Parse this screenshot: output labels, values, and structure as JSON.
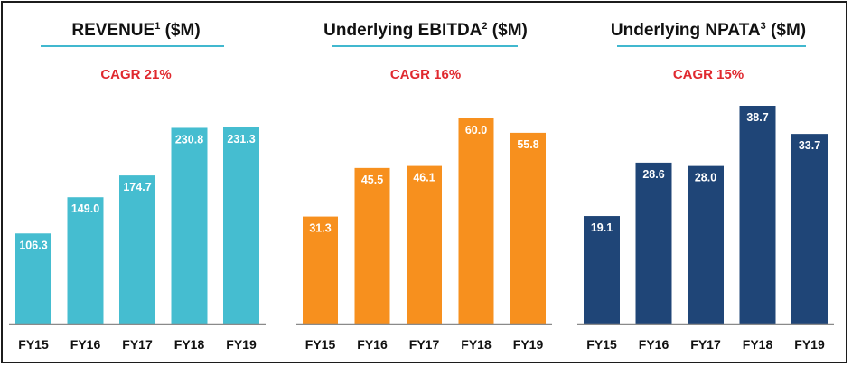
{
  "colors": {
    "revenue": "#45bdd0",
    "ebitda": "#f7901e",
    "npata": "#1f4577",
    "cagr_text": "#e0282e",
    "title_underline": "#41b8cf",
    "baseline": "#8a8a8a"
  },
  "chart_data": [
    {
      "type": "bar",
      "title": "REVENUE",
      "title_sup": "1",
      "title_unit": " ($M)",
      "subtitle": "CAGR 21%",
      "categories": [
        "FY15",
        "FY16",
        "FY17",
        "FY18",
        "FY19"
      ],
      "values": [
        106.3,
        149.0,
        174.7,
        230.8,
        231.3
      ],
      "value_labels": [
        "106.3",
        "149.0",
        "174.7",
        "230.8",
        "231.3"
      ],
      "ylim": [
        0,
        231.3
      ],
      "grid": false,
      "legend": "none"
    },
    {
      "type": "bar",
      "title": "Underlying EBITDA",
      "title_sup": "2",
      "title_unit": " ($M)",
      "subtitle": "CAGR 16%",
      "categories": [
        "FY15",
        "FY16",
        "FY17",
        "FY18",
        "FY19"
      ],
      "values": [
        31.3,
        45.5,
        46.1,
        60.0,
        55.8
      ],
      "value_labels": [
        "31.3",
        "45.5",
        "46.1",
        "60.0",
        "55.8"
      ],
      "ylim": [
        0,
        60.0
      ],
      "grid": false,
      "legend": "none"
    },
    {
      "type": "bar",
      "title": "Underlying NPATA",
      "title_sup": "3",
      "title_unit": " ($M)",
      "subtitle": "CAGR 15%",
      "categories": [
        "FY15",
        "FY16",
        "FY17",
        "FY18",
        "FY19"
      ],
      "values": [
        19.1,
        28.6,
        28.0,
        38.7,
        33.7
      ],
      "value_labels": [
        "19.1",
        "28.6",
        "28.0",
        "38.7",
        "33.7"
      ],
      "ylim": [
        0,
        38.7
      ],
      "grid": false,
      "legend": "none"
    }
  ]
}
